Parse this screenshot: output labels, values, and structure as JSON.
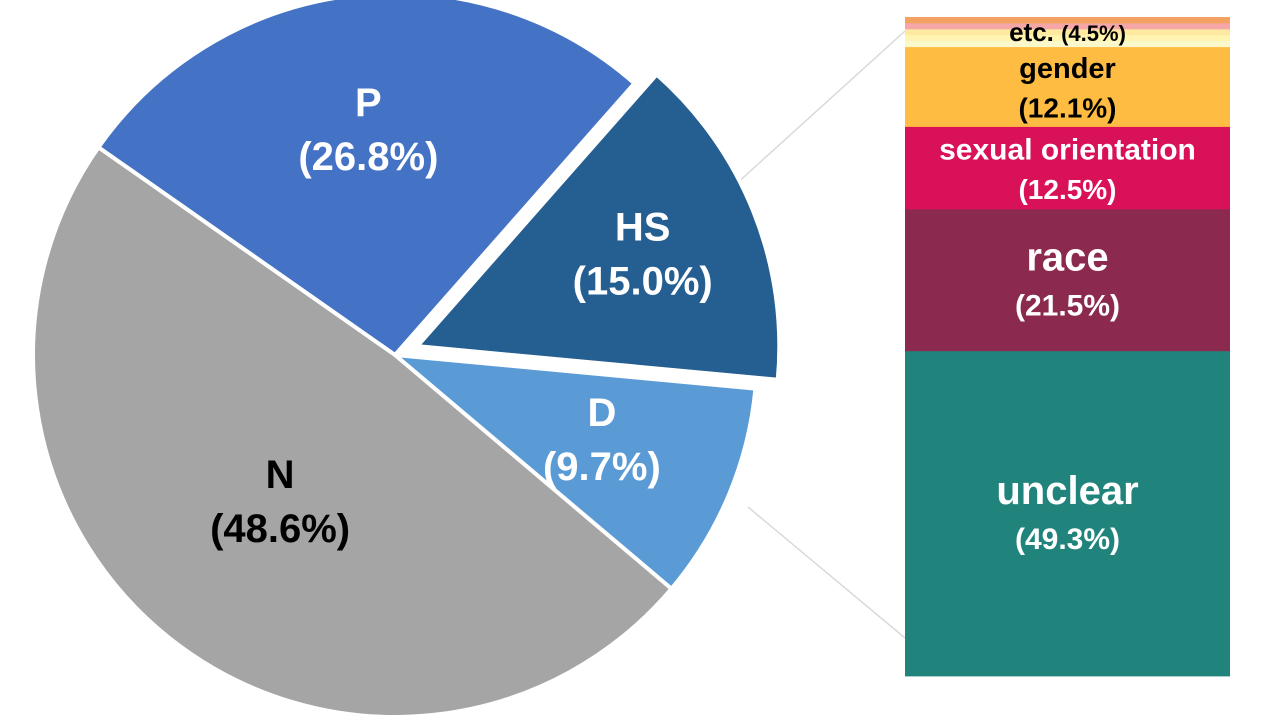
{
  "chart_data": [
    {
      "type": "pie",
      "title": "",
      "series": [
        {
          "label": "P",
          "pct_label": "(26.8%)",
          "value": 26.8,
          "color": "#4472C4",
          "text_color": "#ffffff"
        },
        {
          "label": "HS",
          "pct_label": "(15.0%)",
          "value": 15.0,
          "color": "#255E91",
          "text_color": "#ffffff",
          "exploded": true
        },
        {
          "label": "D",
          "pct_label": "(9.7%)",
          "value": 9.7,
          "color": "#5B9BD5",
          "text_color": "#ffffff"
        },
        {
          "label": "N",
          "pct_label": "(48.6%)",
          "value": 48.6,
          "color": "#A5A5A5",
          "text_color": "#000000"
        }
      ]
    },
    {
      "type": "bar",
      "stacked": true,
      "title": "",
      "breakdown_of": "HS",
      "segments": [
        {
          "label": "unclear",
          "pct_label": "(49.3%)",
          "value": 49.3,
          "color": "#21847C",
          "text_color": "#ffffff"
        },
        {
          "label": "race",
          "pct_label": "(21.5%)",
          "value": 21.5,
          "color": "#8B2A4E",
          "text_color": "#ffffff"
        },
        {
          "label": "sexual orientation",
          "pct_label": "(12.5%)",
          "value": 12.5,
          "color": "#D81159",
          "text_color": "#ffffff"
        },
        {
          "label": "gender",
          "pct_label": "(12.1%)",
          "value": 12.1,
          "color": "#FFBC42",
          "text_color": "#000000"
        },
        {
          "label": "etc.",
          "pct_label": "(4.5%)",
          "value": 4.5,
          "color": "#FFFFBF",
          "text_color": "#000000",
          "stripes": [
            "#FBF8CC",
            "#FFF4B0",
            "#FFE9A0",
            "#F5A7A7",
            "#F4A261"
          ]
        }
      ]
    }
  ]
}
